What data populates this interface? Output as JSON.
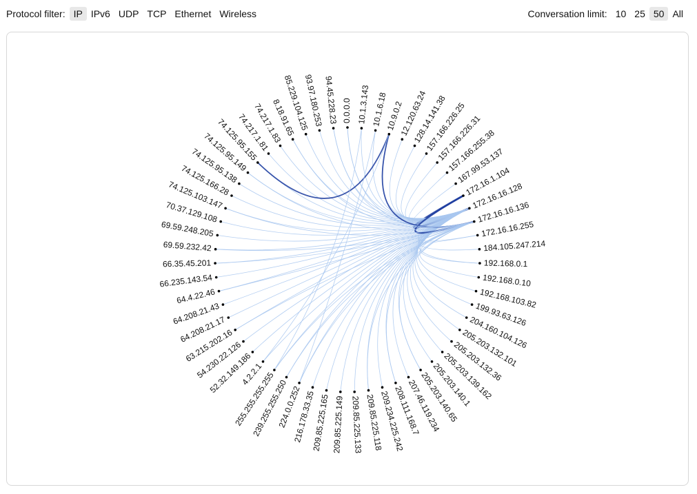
{
  "protocol_filter": {
    "label": "Protocol filter:",
    "options": [
      "IP",
      "IPv6",
      "UDP",
      "TCP",
      "Ethernet",
      "Wireless"
    ],
    "selected": "IP"
  },
  "conversation_limit": {
    "label": "Conversation limit:",
    "options": [
      "10",
      "25",
      "50",
      "All"
    ],
    "selected": "50"
  },
  "colors": {
    "link_light": "#aac8f0",
    "link_dark": "#1a3a9e",
    "node": "#000000"
  },
  "chart_data": {
    "type": "chord",
    "nodes": [
      "0.0.0.0",
      "10.1.3.143",
      "10.1.6.18",
      "10.9.0.2",
      "12.120.63.24",
      "128.14.141.38",
      "157.166.226.25",
      "157.166.226.31",
      "157.166.255.38",
      "167.99.53.137",
      "172.16.1.104",
      "172.16.16.128",
      "172.16.16.136",
      "172.16.16.255",
      "184.105.247.214",
      "192.168.0.1",
      "192.168.0.10",
      "192.168.103.82",
      "199.93.63.126",
      "204.160.104.126",
      "205.203.132.101",
      "205.203.132.36",
      "205.203.139.162",
      "205.203.140.1",
      "205.203.140.65",
      "207.46.119.234",
      "208.111.168.7",
      "209.234.225.242",
      "209.85.225.118",
      "209.85.225.133",
      "209.85.225.149",
      "209.85.225.165",
      "216.178.33.35",
      "224.0.0.252",
      "239.255.255.250",
      "255.255.255.255",
      "4.2.2.1",
      "52.32.149.186",
      "54.230.22.126",
      "63.215.202.16",
      "64.208.21.17",
      "64.208.21.43",
      "64.4.22.46",
      "66.235.143.54",
      "66.35.45.201",
      "69.59.232.42",
      "69.59.248.205",
      "70.37.129.108",
      "74.125.103.147",
      "74.125.166.28",
      "74.125.95.138",
      "74.125.95.149",
      "74.125.95.155",
      "74.217.1.81",
      "74.217.1.83",
      "8.18.91.65",
      "85.229.104.125",
      "93.97.180.253",
      "94.45.228.23"
    ],
    "links": [
      {
        "source": "172.16.16.128",
        "target": "0.0.0.0",
        "weight": 1
      },
      {
        "source": "172.16.16.128",
        "target": "10.1.3.143",
        "weight": 1
      },
      {
        "source": "172.16.16.128",
        "target": "10.1.6.18",
        "weight": 1
      },
      {
        "source": "172.16.16.128",
        "target": "10.9.0.2",
        "weight": 1
      },
      {
        "source": "172.16.16.128",
        "target": "12.120.63.24",
        "weight": 1
      },
      {
        "source": "172.16.16.128",
        "target": "128.14.141.38",
        "weight": 1
      },
      {
        "source": "172.16.16.128",
        "target": "157.166.226.25",
        "weight": 1
      },
      {
        "source": "172.16.16.128",
        "target": "157.166.226.31",
        "weight": 1
      },
      {
        "source": "172.16.16.128",
        "target": "157.166.255.38",
        "weight": 1
      },
      {
        "source": "172.16.16.128",
        "target": "167.99.53.137",
        "weight": 1
      },
      {
        "source": "172.16.16.128",
        "target": "172.16.1.104",
        "weight": 4
      },
      {
        "source": "172.16.16.128",
        "target": "172.16.16.255",
        "weight": 1
      },
      {
        "source": "172.16.16.128",
        "target": "184.105.247.214",
        "weight": 1
      },
      {
        "source": "172.16.16.128",
        "target": "192.168.0.1",
        "weight": 1
      },
      {
        "source": "172.16.16.128",
        "target": "192.168.103.82",
        "weight": 1
      },
      {
        "source": "172.16.16.128",
        "target": "199.93.63.126",
        "weight": 1
      },
      {
        "source": "172.16.16.128",
        "target": "204.160.104.126",
        "weight": 1
      },
      {
        "source": "172.16.16.128",
        "target": "205.203.132.101",
        "weight": 1
      },
      {
        "source": "172.16.16.128",
        "target": "205.203.132.36",
        "weight": 1
      },
      {
        "source": "172.16.16.128",
        "target": "205.203.139.162",
        "weight": 1
      },
      {
        "source": "172.16.16.128",
        "target": "205.203.140.1",
        "weight": 1
      },
      {
        "source": "172.16.16.128",
        "target": "205.203.140.65",
        "weight": 1
      },
      {
        "source": "172.16.16.128",
        "target": "207.46.119.234",
        "weight": 1
      },
      {
        "source": "172.16.16.128",
        "target": "208.111.168.7",
        "weight": 1
      },
      {
        "source": "172.16.16.128",
        "target": "209.234.225.242",
        "weight": 1
      },
      {
        "source": "172.16.16.128",
        "target": "209.85.225.118",
        "weight": 1
      },
      {
        "source": "172.16.16.128",
        "target": "209.85.225.133",
        "weight": 1
      },
      {
        "source": "172.16.16.128",
        "target": "209.85.225.149",
        "weight": 1
      },
      {
        "source": "172.16.16.128",
        "target": "209.85.225.165",
        "weight": 1
      },
      {
        "source": "172.16.16.128",
        "target": "216.178.33.35",
        "weight": 1
      },
      {
        "source": "172.16.16.128",
        "target": "224.0.0.252",
        "weight": 1
      },
      {
        "source": "172.16.16.128",
        "target": "239.255.255.250",
        "weight": 1
      },
      {
        "source": "172.16.16.128",
        "target": "255.255.255.255",
        "weight": 1
      },
      {
        "source": "172.16.16.128",
        "target": "4.2.2.1",
        "weight": 1
      },
      {
        "source": "172.16.16.128",
        "target": "52.32.149.186",
        "weight": 1
      },
      {
        "source": "172.16.16.128",
        "target": "54.230.22.126",
        "weight": 1
      },
      {
        "source": "172.16.16.128",
        "target": "63.215.202.16",
        "weight": 1
      },
      {
        "source": "172.16.16.128",
        "target": "64.208.21.17",
        "weight": 1
      },
      {
        "source": "172.16.16.128",
        "target": "64.208.21.43",
        "weight": 1
      },
      {
        "source": "172.16.16.128",
        "target": "64.4.22.46",
        "weight": 1
      },
      {
        "source": "172.16.16.128",
        "target": "66.235.143.54",
        "weight": 1
      },
      {
        "source": "172.16.16.128",
        "target": "66.35.45.201",
        "weight": 1
      },
      {
        "source": "172.16.16.128",
        "target": "69.59.232.42",
        "weight": 1
      },
      {
        "source": "172.16.16.128",
        "target": "69.59.248.205",
        "weight": 1
      },
      {
        "source": "172.16.16.128",
        "target": "70.37.129.108",
        "weight": 1
      },
      {
        "source": "172.16.16.128",
        "target": "74.125.103.147",
        "weight": 1
      },
      {
        "source": "172.16.16.128",
        "target": "74.125.166.28",
        "weight": 1
      },
      {
        "source": "172.16.16.128",
        "target": "74.125.95.138",
        "weight": 1
      },
      {
        "source": "172.16.16.128",
        "target": "74.125.95.149",
        "weight": 1
      },
      {
        "source": "172.16.16.128",
        "target": "74.125.95.155",
        "weight": 1
      },
      {
        "source": "172.16.16.128",
        "target": "74.217.1.81",
        "weight": 1
      },
      {
        "source": "172.16.16.128",
        "target": "74.217.1.83",
        "weight": 1
      },
      {
        "source": "172.16.16.128",
        "target": "8.18.91.65",
        "weight": 1
      },
      {
        "source": "172.16.16.128",
        "target": "85.229.104.125",
        "weight": 1
      },
      {
        "source": "172.16.16.128",
        "target": "93.97.180.253",
        "weight": 1
      },
      {
        "source": "172.16.16.128",
        "target": "94.45.228.23",
        "weight": 1
      },
      {
        "source": "172.16.16.136",
        "target": "0.0.0.0",
        "weight": 1
      },
      {
        "source": "172.16.16.136",
        "target": "10.9.0.2",
        "weight": 2
      },
      {
        "source": "172.16.16.136",
        "target": "172.16.1.104",
        "weight": 3
      },
      {
        "source": "172.16.16.136",
        "target": "172.16.16.255",
        "weight": 1
      },
      {
        "source": "172.16.16.136",
        "target": "192.168.0.1",
        "weight": 1
      },
      {
        "source": "172.16.16.136",
        "target": "192.168.0.10",
        "weight": 1
      },
      {
        "source": "172.16.16.136",
        "target": "205.203.140.65",
        "weight": 1
      },
      {
        "source": "172.16.16.136",
        "target": "208.111.168.7",
        "weight": 1
      },
      {
        "source": "172.16.16.136",
        "target": "209.85.225.118",
        "weight": 1
      },
      {
        "source": "172.16.16.136",
        "target": "224.0.0.252",
        "weight": 1
      },
      {
        "source": "172.16.16.136",
        "target": "239.255.255.250",
        "weight": 1
      },
      {
        "source": "172.16.16.136",
        "target": "255.255.255.255",
        "weight": 1
      },
      {
        "source": "172.16.16.136",
        "target": "63.215.202.16",
        "weight": 1
      },
      {
        "source": "172.16.16.136",
        "target": "64.4.22.46",
        "weight": 1
      },
      {
        "source": "172.16.16.136",
        "target": "66.35.45.201",
        "weight": 1
      },
      {
        "source": "172.16.16.136",
        "target": "69.59.232.42",
        "weight": 1
      },
      {
        "source": "172.16.16.136",
        "target": "74.125.103.147",
        "weight": 1
      },
      {
        "source": "172.16.16.136",
        "target": "74.125.95.149",
        "weight": 1
      },
      {
        "source": "172.16.16.136",
        "target": "8.18.91.65",
        "weight": 1
      },
      {
        "source": "172.16.16.136",
        "target": "94.45.228.23",
        "weight": 1
      },
      {
        "source": "10.9.0.2",
        "target": "74.125.95.155",
        "weight": 2
      },
      {
        "source": "10.9.0.2",
        "target": "4.2.2.1",
        "weight": 1
      },
      {
        "source": "10.1.3.143",
        "target": "255.255.255.255",
        "weight": 1
      },
      {
        "source": "10.1.6.18",
        "target": "224.0.0.252",
        "weight": 1
      }
    ]
  }
}
